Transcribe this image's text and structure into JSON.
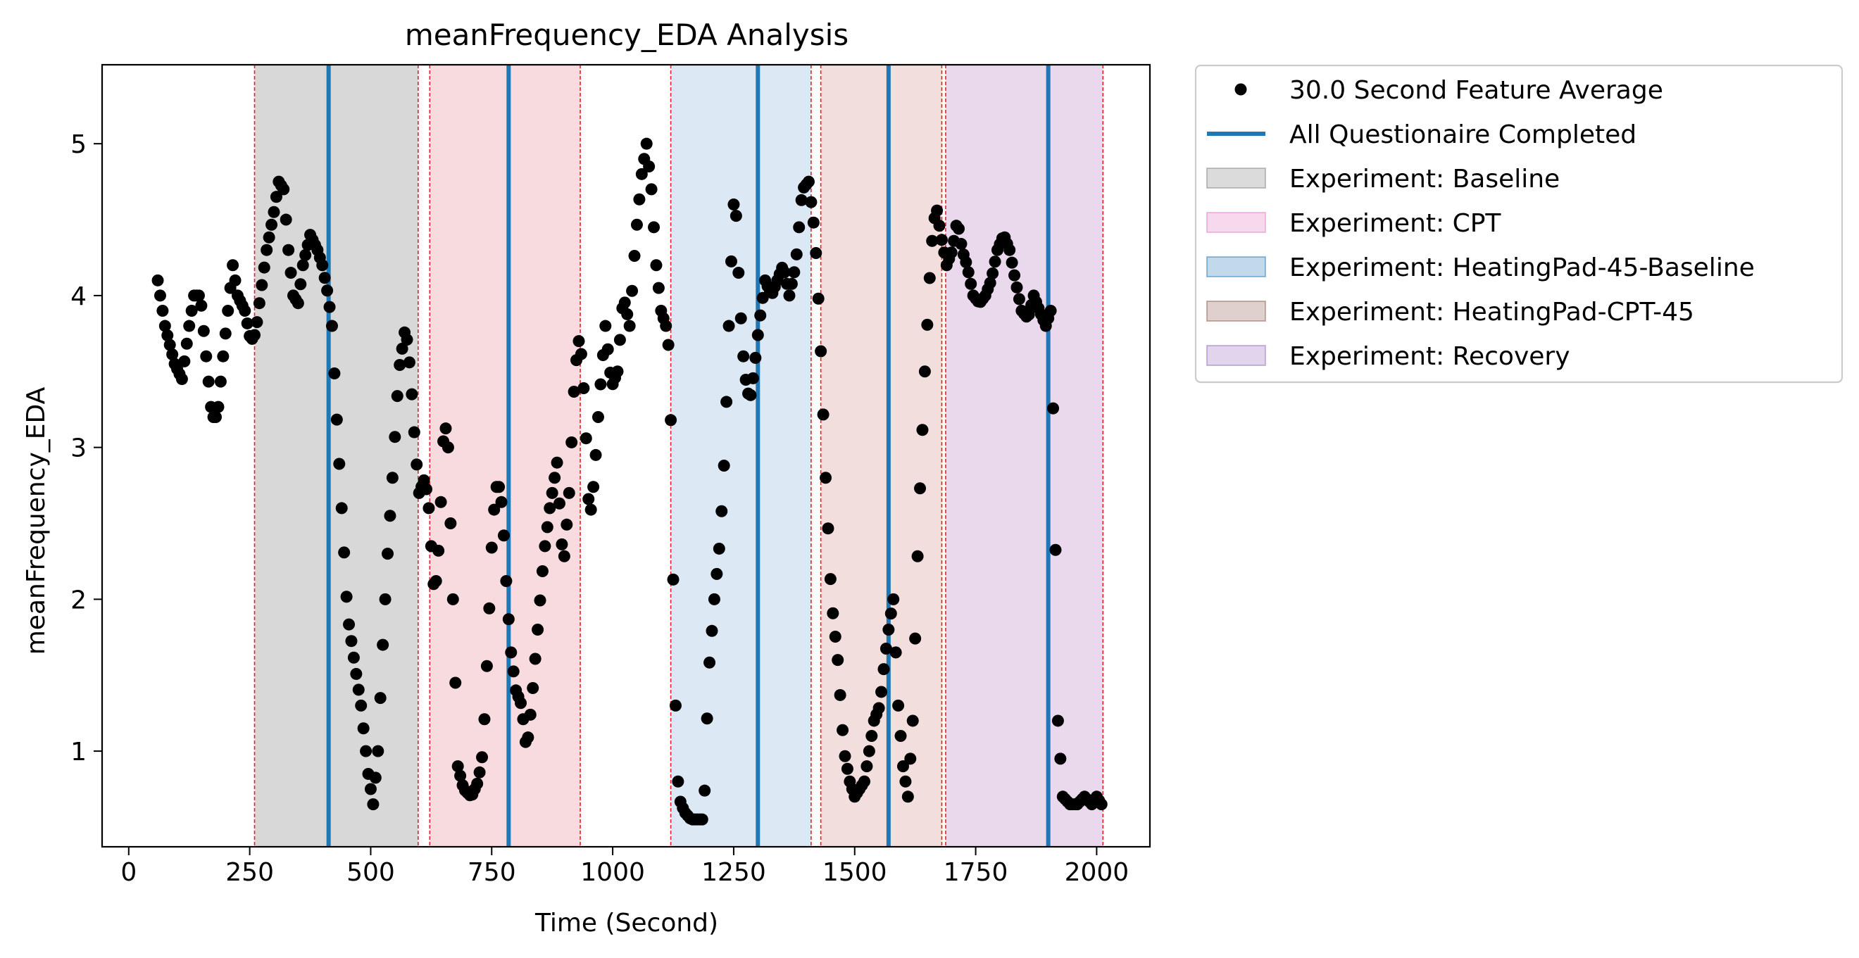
{
  "chart_data": {
    "type": "scatter",
    "title": "meanFrequency_EDA Analysis",
    "xlabel": "Time (Second)",
    "ylabel": "meanFrequency_EDA",
    "xlim": [
      -55,
      2110
    ],
    "ylim": [
      0.37,
      5.52
    ],
    "x_ticks": [
      0,
      250,
      500,
      750,
      1000,
      1250,
      1500,
      1750,
      2000
    ],
    "y_ticks": [
      1,
      2,
      3,
      4,
      5
    ],
    "grid": false,
    "legend_position": "outside-top-right",
    "legend": [
      {
        "label": "30.0 Second Feature Average",
        "kind": "marker",
        "color": "#000000"
      },
      {
        "label": "All Questionaire Completed",
        "kind": "line",
        "color": "#1f77b4"
      },
      {
        "label": "Experiment: Baseline",
        "kind": "patch",
        "color": "#7f7f7f"
      },
      {
        "label": "Experiment: CPT",
        "kind": "patch",
        "color": "#e377c2"
      },
      {
        "label": "Experiment: HeatingPad-45-Baseline",
        "kind": "patch",
        "color": "#1f77b4"
      },
      {
        "label": "Experiment: HeatingPad-CPT-45",
        "kind": "patch",
        "color": "#8c564b"
      },
      {
        "label": "Experiment: Recovery",
        "kind": "patch",
        "color": "#9467bd"
      }
    ],
    "shaded_regions": [
      {
        "experiment": "Baseline",
        "start": 260,
        "end": 598,
        "color": "#d8d8d8"
      },
      {
        "experiment": "CPT",
        "start": 622,
        "end": 933,
        "color": "#f7dbde"
      },
      {
        "experiment": "HeatingPad-45-Baseline",
        "start": 1120,
        "end": 1410,
        "color": "#dce8f4"
      },
      {
        "experiment": "HeatingPad-CPT-45",
        "start": 1430,
        "end": 1680,
        "color": "#f1dedd"
      },
      {
        "experiment": "Recovery",
        "start": 1688,
        "end": 2013,
        "color": "#ead8ec"
      }
    ],
    "boundary_lines": [
      260,
      598,
      622,
      933,
      1120,
      1410,
      1430,
      1680,
      1688,
      2013
    ],
    "questionnaire_completed": [
      413,
      785,
      1300,
      1570,
      1900
    ],
    "series": [
      {
        "name": "30.0 Second Feature Average",
        "sample_interval": 5,
        "anchors": [
          [
            60,
            4.1
          ],
          [
            75,
            3.8
          ],
          [
            95,
            3.55
          ],
          [
            110,
            3.45
          ],
          [
            125,
            3.8
          ],
          [
            135,
            4.0
          ],
          [
            148,
            4.0
          ],
          [
            160,
            3.6
          ],
          [
            172,
            3.2
          ],
          [
            183,
            3.2
          ],
          [
            195,
            3.6
          ],
          [
            205,
            3.9
          ],
          [
            215,
            4.2
          ],
          [
            225,
            4.0
          ],
          [
            240,
            3.9
          ],
          [
            252,
            3.7
          ],
          [
            262,
            3.75
          ],
          [
            272,
            4.0
          ],
          [
            285,
            4.3
          ],
          [
            300,
            4.55
          ],
          [
            310,
            4.75
          ],
          [
            320,
            4.7
          ],
          [
            330,
            4.3
          ],
          [
            340,
            4.0
          ],
          [
            350,
            3.95
          ],
          [
            360,
            4.2
          ],
          [
            375,
            4.4
          ],
          [
            390,
            4.3
          ],
          [
            400,
            4.2
          ],
          [
            412,
            4.0
          ],
          [
            420,
            3.8
          ],
          [
            428,
            3.3
          ],
          [
            440,
            2.6
          ],
          [
            452,
            1.9
          ],
          [
            468,
            1.55
          ],
          [
            480,
            1.3
          ],
          [
            495,
            0.85
          ],
          [
            505,
            0.65
          ],
          [
            515,
            1.0
          ],
          [
            525,
            1.7
          ],
          [
            535,
            2.3
          ],
          [
            545,
            2.8
          ],
          [
            558,
            3.5
          ],
          [
            572,
            3.8
          ],
          [
            582,
            3.5
          ],
          [
            592,
            3.0
          ],
          [
            600,
            2.7
          ],
          [
            612,
            2.8
          ],
          [
            620,
            2.6
          ],
          [
            632,
            2.0
          ],
          [
            642,
            2.4
          ],
          [
            652,
            3.2
          ],
          [
            660,
            3.0
          ],
          [
            670,
            2.0
          ],
          [
            680,
            0.9
          ],
          [
            692,
            0.75
          ],
          [
            708,
            0.7
          ],
          [
            722,
            0.8
          ],
          [
            732,
            1.0
          ],
          [
            742,
            1.7
          ],
          [
            752,
            2.5
          ],
          [
            762,
            2.8
          ],
          [
            772,
            2.6
          ],
          [
            782,
            2.0
          ],
          [
            790,
            1.65
          ],
          [
            800,
            1.4
          ],
          [
            812,
            1.3
          ],
          [
            822,
            1.0
          ],
          [
            832,
            1.3
          ],
          [
            845,
            1.8
          ],
          [
            858,
            2.3
          ],
          [
            870,
            2.6
          ],
          [
            885,
            2.9
          ],
          [
            898,
            2.2
          ],
          [
            910,
            2.7
          ],
          [
            922,
            3.5
          ],
          [
            932,
            3.75
          ],
          [
            942,
            3.3
          ],
          [
            952,
            2.5
          ],
          [
            962,
            2.8
          ],
          [
            972,
            3.3
          ],
          [
            985,
            3.8
          ],
          [
            998,
            3.4
          ],
          [
            1010,
            3.5
          ],
          [
            1022,
            4.0
          ],
          [
            1035,
            3.8
          ],
          [
            1048,
            4.4
          ],
          [
            1060,
            4.8
          ],
          [
            1070,
            5.0
          ],
          [
            1080,
            4.7
          ],
          [
            1090,
            4.2
          ],
          [
            1100,
            3.9
          ],
          [
            1110,
            3.8
          ],
          [
            1118,
            3.6
          ],
          [
            1128,
            1.5
          ],
          [
            1136,
            0.7
          ],
          [
            1148,
            0.6
          ],
          [
            1162,
            0.55
          ],
          [
            1175,
            0.55
          ],
          [
            1188,
            0.55
          ],
          [
            1198,
            1.5
          ],
          [
            1210,
            2.0
          ],
          [
            1222,
            2.4
          ],
          [
            1232,
            3.0
          ],
          [
            1242,
            4.0
          ],
          [
            1252,
            4.75
          ],
          [
            1262,
            4.0
          ],
          [
            1272,
            3.5
          ],
          [
            1283,
            3.3
          ],
          [
            1292,
            3.5
          ],
          [
            1302,
            3.8
          ],
          [
            1315,
            4.1
          ],
          [
            1328,
            4.0
          ],
          [
            1340,
            4.1
          ],
          [
            1352,
            4.2
          ],
          [
            1365,
            4.0
          ],
          [
            1378,
            4.2
          ],
          [
            1392,
            4.7
          ],
          [
            1405,
            4.75
          ],
          [
            1418,
            4.4
          ],
          [
            1428,
            3.8
          ],
          [
            1440,
            2.8
          ],
          [
            1452,
            2.0
          ],
          [
            1465,
            1.6
          ],
          [
            1478,
            1.0
          ],
          [
            1490,
            0.8
          ],
          [
            1500,
            0.7
          ],
          [
            1510,
            0.75
          ],
          [
            1520,
            0.8
          ],
          [
            1530,
            1.0
          ],
          [
            1540,
            1.2
          ],
          [
            1552,
            1.3
          ],
          [
            1562,
            1.6
          ],
          [
            1572,
            1.85
          ],
          [
            1580,
            2.0
          ],
          [
            1590,
            1.3
          ],
          [
            1600,
            0.9
          ],
          [
            1610,
            0.7
          ],
          [
            1620,
            1.2
          ],
          [
            1632,
            2.5
          ],
          [
            1645,
            3.5
          ],
          [
            1658,
            4.3
          ],
          [
            1668,
            4.6
          ],
          [
            1678,
            4.4
          ],
          [
            1690,
            4.2
          ],
          [
            1702,
            4.3
          ],
          [
            1712,
            4.5
          ],
          [
            1722,
            4.3
          ],
          [
            1732,
            4.2
          ],
          [
            1745,
            4.0
          ],
          [
            1758,
            3.95
          ],
          [
            1770,
            4.0
          ],
          [
            1782,
            4.1
          ],
          [
            1795,
            4.3
          ],
          [
            1808,
            4.4
          ],
          [
            1820,
            4.3
          ],
          [
            1832,
            4.1
          ],
          [
            1845,
            3.9
          ],
          [
            1858,
            3.85
          ],
          [
            1870,
            4.0
          ],
          [
            1882,
            3.9
          ],
          [
            1895,
            3.8
          ],
          [
            1905,
            3.9
          ],
          [
            1912,
            3.0
          ],
          [
            1920,
            1.2
          ],
          [
            1930,
            0.7
          ],
          [
            1945,
            0.65
          ],
          [
            1960,
            0.65
          ],
          [
            1975,
            0.7
          ],
          [
            1990,
            0.65
          ],
          [
            2000,
            0.7
          ],
          [
            2010,
            0.65
          ]
        ]
      }
    ]
  }
}
